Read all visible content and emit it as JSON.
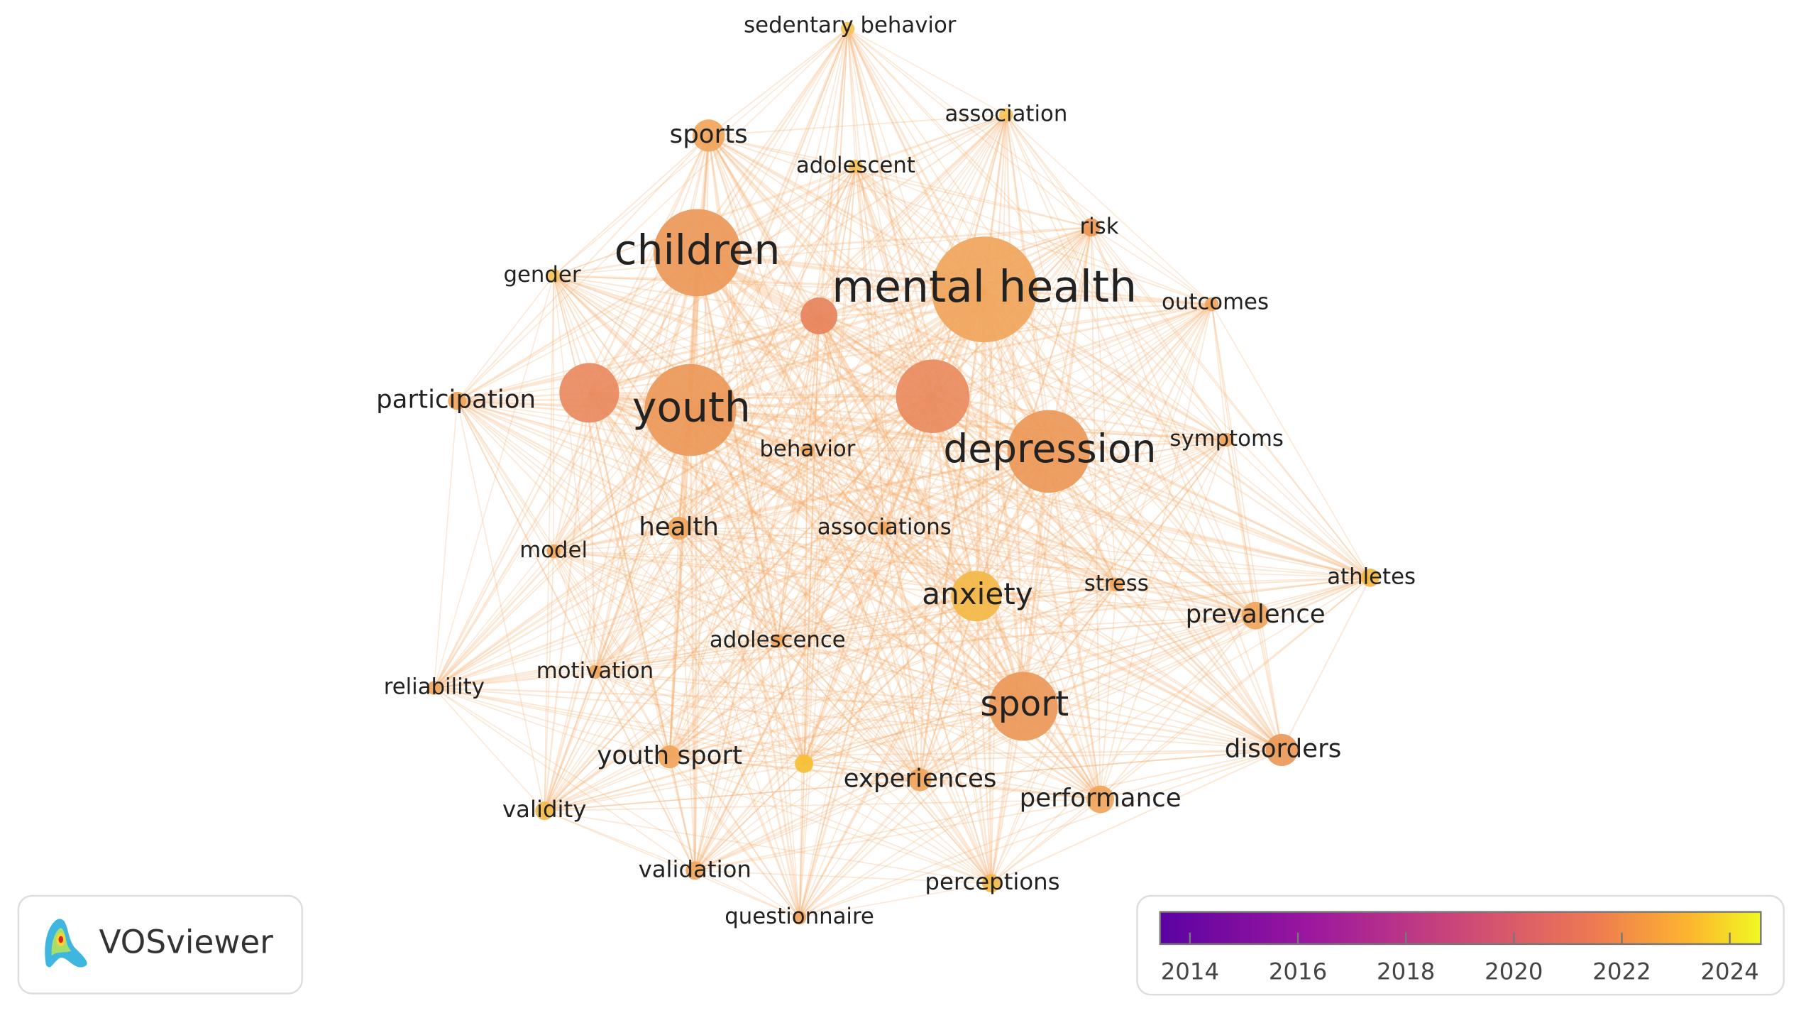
{
  "nodes": [
    {
      "label": "sedentary behavior"
    },
    {
      "label": "sports"
    },
    {
      "label": "association"
    },
    {
      "label": "adolescent"
    },
    {
      "label": "risk"
    },
    {
      "label": "children"
    },
    {
      "label": "mental health"
    },
    {
      "label": "gender"
    },
    {
      "label": "outcomes"
    },
    {
      "label": "participation"
    },
    {
      "label": "youth"
    },
    {
      "label": "depression"
    },
    {
      "label": "symptoms"
    },
    {
      "label": "behavior"
    },
    {
      "label": "health"
    },
    {
      "label": "associations"
    },
    {
      "label": "model"
    },
    {
      "label": "anxiety"
    },
    {
      "label": "stress"
    },
    {
      "label": "athletes"
    },
    {
      "label": "prevalence"
    },
    {
      "label": "adolescence"
    },
    {
      "label": "motivation"
    },
    {
      "label": "reliability"
    },
    {
      "label": "sport"
    },
    {
      "label": "youth sport"
    },
    {
      "label": "disorders"
    },
    {
      "label": "experiences"
    },
    {
      "label": "performance"
    },
    {
      "label": "validity"
    },
    {
      "label": "validation"
    },
    {
      "label": "perceptions"
    },
    {
      "label": "questionnaire"
    }
  ],
  "logo": {
    "text": "VOSviewer"
  },
  "legend": {
    "ticks": [
      2014,
      2016,
      2018,
      2020,
      2022,
      2024
    ]
  }
}
